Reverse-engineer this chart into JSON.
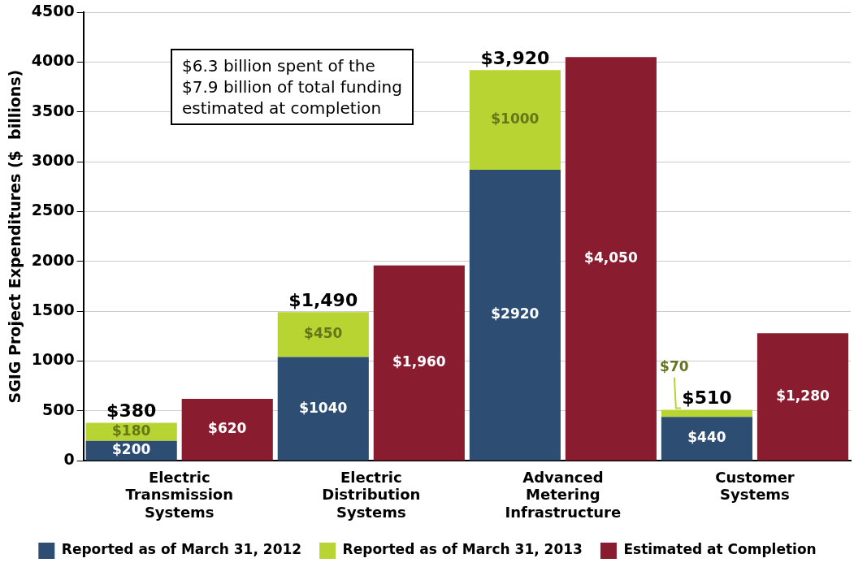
{
  "chart_data": {
    "type": "bar",
    "stacked": true,
    "ylabel": "SGIG Project Expenditures ($  billions)",
    "categories": [
      "Electric Transmission Systems",
      null,
      "Electric Distribution Systems",
      null,
      "Advanced Metering Infrastructure",
      null,
      "Customer Systems",
      null
    ],
    "series": [
      {
        "name": "Reported as of March 31, 2012",
        "color": "#2e4d72",
        "values": [
          200,
          null,
          1040,
          null,
          2920,
          null,
          440,
          null
        ],
        "value_labels": [
          "$200",
          null,
          "$1040",
          null,
          "$2920",
          null,
          "$440",
          null
        ]
      },
      {
        "name": "Reported as of March 31, 2013",
        "color": "#b8d433",
        "values": [
          180,
          null,
          450,
          null,
          1000,
          null,
          70,
          null
        ],
        "value_labels": [
          "$180",
          null,
          "$450",
          null,
          "$1000",
          null,
          "$70",
          null
        ]
      },
      {
        "name": "Estimated at Completion",
        "color": "#8a1c30",
        "values": [
          null,
          620,
          null,
          1960,
          null,
          4050,
          null,
          1280
        ],
        "value_labels": [
          null,
          "$620",
          null,
          "$1,960",
          null,
          "$4,050",
          null,
          "$1,280"
        ]
      }
    ],
    "totals": [
      "$380",
      null,
      "$1,490",
      null,
      "$3,920",
      null,
      "$510",
      null
    ],
    "ylim": [
      0,
      4500
    ],
    "yticks": [
      0,
      500,
      1000,
      1500,
      2000,
      2500,
      3000,
      3500,
      4000,
      4500
    ],
    "grid": "y",
    "legend": "bottom",
    "annotations": [
      "$6.3 billion spent of the\n$7.9 billion of total funding\nestimated at completion"
    ]
  }
}
